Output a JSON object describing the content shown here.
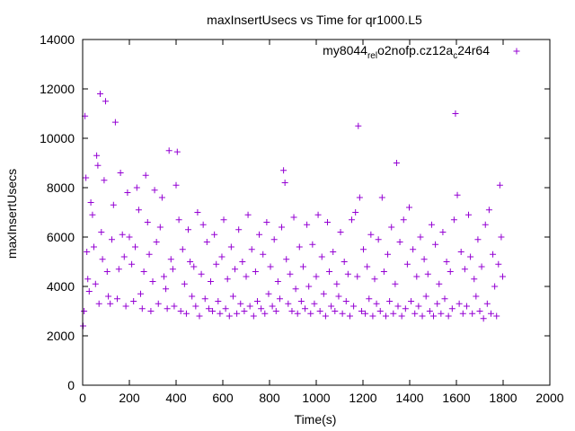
{
  "chart_data": {
    "type": "scatter",
    "title": "maxInsertUsecs vs Time for qr1000.L5",
    "xlabel": "Time(s)",
    "ylabel": "maxInsertUsecs",
    "xlim": [
      0,
      2000
    ],
    "ylim": [
      0,
      14000
    ],
    "x_ticks": [
      "0",
      "200",
      "400",
      "600",
      "800",
      "1000",
      "1200",
      "1400",
      "1600",
      "1800",
      "2000"
    ],
    "y_ticks": [
      "0",
      "2000",
      "4000",
      "6000",
      "8000",
      "10000",
      "12000",
      "14000"
    ],
    "grid": false,
    "legend_position": "top-right",
    "series": [
      {
        "name": "my8044_rel_o2nofp.cz12a_c24r64",
        "name_parts": {
          "base": "my8044",
          "sub1": "rel",
          "mid1": "o",
          "sub2": "2nofp.cz12a",
          "mid2": "c",
          "tail": "24r64"
        },
        "legend_sub": [
          "rel",
          "o",
          "c"
        ],
        "color": "#9400d3",
        "marker": "plus",
        "points": [
          [
            2,
            2400
          ],
          [
            6,
            3000
          ],
          [
            10,
            10900
          ],
          [
            14,
            8400
          ],
          [
            18,
            5400
          ],
          [
            22,
            4300
          ],
          [
            28,
            3800
          ],
          [
            35,
            7400
          ],
          [
            42,
            6900
          ],
          [
            48,
            5600
          ],
          [
            55,
            4100
          ],
          [
            60,
            9300
          ],
          [
            65,
            8900
          ],
          [
            70,
            3300
          ],
          [
            75,
            11800
          ],
          [
            80,
            6200
          ],
          [
            85,
            5100
          ],
          [
            92,
            8300
          ],
          [
            98,
            11500
          ],
          [
            105,
            4600
          ],
          [
            110,
            3600
          ],
          [
            118,
            3300
          ],
          [
            125,
            5900
          ],
          [
            132,
            7300
          ],
          [
            140,
            10650
          ],
          [
            148,
            3500
          ],
          [
            155,
            4700
          ],
          [
            162,
            8600
          ],
          [
            170,
            6100
          ],
          [
            178,
            5200
          ],
          [
            185,
            3200
          ],
          [
            192,
            7800
          ],
          [
            200,
            6000
          ],
          [
            210,
            4900
          ],
          [
            218,
            3400
          ],
          [
            225,
            5600
          ],
          [
            232,
            8000
          ],
          [
            240,
            7100
          ],
          [
            248,
            3700
          ],
          [
            255,
            3100
          ],
          [
            262,
            4600
          ],
          [
            270,
            8500
          ],
          [
            278,
            6600
          ],
          [
            285,
            5300
          ],
          [
            292,
            3000
          ],
          [
            300,
            4200
          ],
          [
            308,
            7900
          ],
          [
            316,
            5800
          ],
          [
            324,
            3300
          ],
          [
            332,
            6400
          ],
          [
            340,
            7600
          ],
          [
            348,
            4400
          ],
          [
            356,
            3900
          ],
          [
            362,
            3100
          ],
          [
            370,
            9500
          ],
          [
            378,
            5100
          ],
          [
            386,
            4700
          ],
          [
            392,
            3200
          ],
          [
            400,
            8100
          ],
          [
            405,
            9450
          ],
          [
            412,
            6700
          ],
          [
            420,
            3000
          ],
          [
            428,
            5500
          ],
          [
            436,
            4100
          ],
          [
            444,
            2900
          ],
          [
            452,
            6300
          ],
          [
            460,
            5000
          ],
          [
            468,
            3600
          ],
          [
            476,
            4800
          ],
          [
            484,
            3200
          ],
          [
            492,
            7000
          ],
          [
            500,
            2800
          ],
          [
            508,
            4500
          ],
          [
            516,
            6500
          ],
          [
            524,
            3500
          ],
          [
            532,
            5800
          ],
          [
            540,
            3100
          ],
          [
            548,
            4200
          ],
          [
            556,
            3000
          ],
          [
            564,
            6100
          ],
          [
            572,
            4900
          ],
          [
            580,
            3400
          ],
          [
            588,
            2900
          ],
          [
            596,
            5200
          ],
          [
            604,
            6700
          ],
          [
            612,
            3100
          ],
          [
            620,
            4300
          ],
          [
            628,
            2800
          ],
          [
            636,
            5600
          ],
          [
            644,
            3600
          ],
          [
            652,
            4700
          ],
          [
            660,
            2900
          ],
          [
            668,
            6300
          ],
          [
            676,
            3300
          ],
          [
            684,
            5000
          ],
          [
            692,
            3000
          ],
          [
            700,
            4400
          ],
          [
            708,
            6900
          ],
          [
            716,
            3200
          ],
          [
            724,
            5500
          ],
          [
            732,
            2800
          ],
          [
            740,
            4600
          ],
          [
            748,
            3400
          ],
          [
            756,
            6100
          ],
          [
            764,
            3100
          ],
          [
            772,
            5300
          ],
          [
            780,
            2900
          ],
          [
            788,
            6600
          ],
          [
            796,
            3700
          ],
          [
            804,
            4800
          ],
          [
            812,
            3200
          ],
          [
            820,
            5900
          ],
          [
            828,
            3000
          ],
          [
            836,
            4200
          ],
          [
            844,
            3500
          ],
          [
            852,
            6400
          ],
          [
            860,
            8700
          ],
          [
            866,
            8200
          ],
          [
            872,
            5100
          ],
          [
            880,
            3300
          ],
          [
            888,
            4500
          ],
          [
            896,
            3000
          ],
          [
            904,
            6800
          ],
          [
            912,
            3900
          ],
          [
            920,
            2900
          ],
          [
            928,
            5600
          ],
          [
            936,
            3400
          ],
          [
            944,
            4800
          ],
          [
            952,
            3100
          ],
          [
            960,
            6500
          ],
          [
            968,
            4000
          ],
          [
            976,
            2900
          ],
          [
            984,
            5700
          ],
          [
            992,
            3300
          ],
          [
            1000,
            4400
          ],
          [
            1008,
            6900
          ],
          [
            1016,
            3000
          ],
          [
            1024,
            5200
          ],
          [
            1032,
            3700
          ],
          [
            1040,
            2800
          ],
          [
            1048,
            6600
          ],
          [
            1056,
            4600
          ],
          [
            1064,
            3200
          ],
          [
            1072,
            5400
          ],
          [
            1080,
            3000
          ],
          [
            1088,
            4100
          ],
          [
            1096,
            3600
          ],
          [
            1104,
            6200
          ],
          [
            1112,
            2900
          ],
          [
            1120,
            5000
          ],
          [
            1128,
            3400
          ],
          [
            1136,
            4500
          ],
          [
            1144,
            2800
          ],
          [
            1152,
            6700
          ],
          [
            1160,
            3200
          ],
          [
            1168,
            7000
          ],
          [
            1176,
            4400
          ],
          [
            1180,
            10500
          ],
          [
            1186,
            7600
          ],
          [
            1194,
            3000
          ],
          [
            1202,
            5500
          ],
          [
            1210,
            2900
          ],
          [
            1218,
            4800
          ],
          [
            1226,
            3500
          ],
          [
            1234,
            6100
          ],
          [
            1242,
            2800
          ],
          [
            1250,
            4300
          ],
          [
            1258,
            3300
          ],
          [
            1266,
            5900
          ],
          [
            1274,
            3000
          ],
          [
            1282,
            7600
          ],
          [
            1290,
            4600
          ],
          [
            1298,
            2800
          ],
          [
            1306,
            5300
          ],
          [
            1314,
            3400
          ],
          [
            1322,
            6400
          ],
          [
            1330,
            2900
          ],
          [
            1338,
            4100
          ],
          [
            1344,
            9000
          ],
          [
            1350,
            3200
          ],
          [
            1358,
            5800
          ],
          [
            1366,
            2800
          ],
          [
            1374,
            6700
          ],
          [
            1382,
            3100
          ],
          [
            1390,
            4900
          ],
          [
            1398,
            7200
          ],
          [
            1406,
            3400
          ],
          [
            1414,
            5500
          ],
          [
            1422,
            2900
          ],
          [
            1430,
            4400
          ],
          [
            1438,
            3200
          ],
          [
            1446,
            6000
          ],
          [
            1454,
            2800
          ],
          [
            1462,
            5100
          ],
          [
            1470,
            3600
          ],
          [
            1478,
            4500
          ],
          [
            1486,
            3000
          ],
          [
            1494,
            6500
          ],
          [
            1502,
            2800
          ],
          [
            1510,
            5700
          ],
          [
            1518,
            3300
          ],
          [
            1526,
            4100
          ],
          [
            1534,
            2900
          ],
          [
            1542,
            6200
          ],
          [
            1550,
            3500
          ],
          [
            1558,
            5000
          ],
          [
            1566,
            2800
          ],
          [
            1574,
            4600
          ],
          [
            1582,
            3100
          ],
          [
            1590,
            6700
          ],
          [
            1596,
            11000
          ],
          [
            1604,
            7700
          ],
          [
            1612,
            3300
          ],
          [
            1620,
            5400
          ],
          [
            1628,
            2900
          ],
          [
            1636,
            4700
          ],
          [
            1644,
            3200
          ],
          [
            1652,
            6900
          ],
          [
            1660,
            5200
          ],
          [
            1668,
            2900
          ],
          [
            1676,
            4300
          ],
          [
            1684,
            3600
          ],
          [
            1692,
            5900
          ],
          [
            1700,
            3000
          ],
          [
            1708,
            4800
          ],
          [
            1716,
            2700
          ],
          [
            1724,
            6500
          ],
          [
            1732,
            3300
          ],
          [
            1740,
            7100
          ],
          [
            1748,
            2900
          ],
          [
            1756,
            5300
          ],
          [
            1764,
            4000
          ],
          [
            1772,
            2800
          ],
          [
            1780,
            4900
          ],
          [
            1786,
            8100
          ],
          [
            1792,
            6000
          ],
          [
            1798,
            4400
          ]
        ]
      }
    ]
  }
}
